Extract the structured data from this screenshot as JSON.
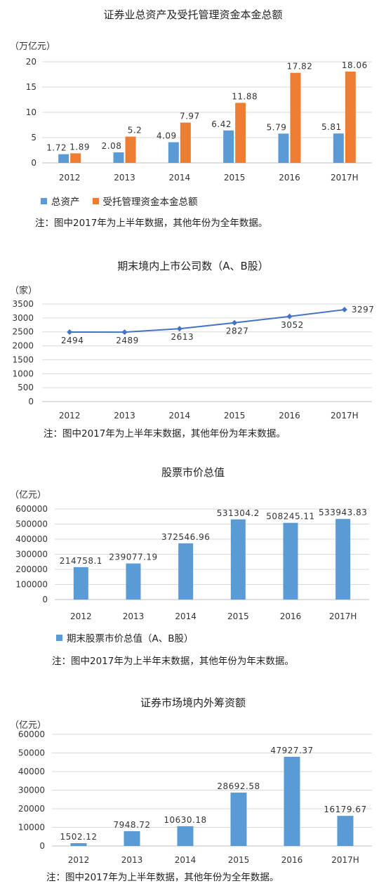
{
  "colors": {
    "blue": "#5b9bd5",
    "orange": "#ed7d31",
    "grid": "#d9d9d9",
    "line": "#4472c4"
  },
  "chart_data": [
    {
      "type": "bar",
      "title": "证券业总资产及受托管理资金本金总额",
      "unit": "（万亿元）",
      "categories": [
        "2012",
        "2013",
        "2014",
        "2015",
        "2016",
        "2017H"
      ],
      "ylim": [
        0,
        20
      ],
      "yticks": [
        0,
        5,
        10,
        15,
        20
      ],
      "series": [
        {
          "name": "总资产",
          "values": [
            1.72,
            2.08,
            4.09,
            6.42,
            5.79,
            5.81
          ],
          "labels": [
            "1.72",
            "2.08",
            "4.09",
            "6.42",
            "5.79",
            "5.81"
          ]
        },
        {
          "name": "受托管理资金本金总额",
          "values": [
            1.89,
            5.2,
            7.97,
            11.88,
            17.82,
            18.06
          ],
          "labels": [
            "1.89",
            "5.2",
            "7.97",
            "11.88",
            "17.82",
            "18.06"
          ]
        }
      ],
      "note": "注：图中2017年为上半年数据，其他年份为全年数据。",
      "grid": true,
      "legend": "bottom"
    },
    {
      "type": "line",
      "title": "期末境内上市公司数（A、B股）",
      "unit": "（家）",
      "categories": [
        "2012",
        "2013",
        "2014",
        "2015",
        "2016",
        "2017H"
      ],
      "ylim": [
        0,
        3500
      ],
      "yticks": [
        0,
        500,
        1000,
        1500,
        2000,
        2500,
        3000,
        3500
      ],
      "series": [
        {
          "values": [
            2494,
            2489,
            2613,
            2827,
            3052,
            3297
          ],
          "labels": [
            "2494",
            "2489",
            "2613",
            "2827",
            "3052",
            "3297"
          ]
        }
      ],
      "note": "注：图中2017年为上半年末数据，其他年份为年末数据。",
      "grid": true
    },
    {
      "type": "bar",
      "title": "股票市价总值",
      "unit": "（亿元）",
      "categories": [
        "2012",
        "2013",
        "2014",
        "2015",
        "2016",
        "2017H"
      ],
      "ylim": [
        0,
        600000
      ],
      "yticks": [
        0,
        100000,
        200000,
        300000,
        400000,
        500000,
        600000
      ],
      "series": [
        {
          "name": "期末股票市价总值（A、B股）",
          "values": [
            214758.1,
            239077.19,
            372546.96,
            531304.2,
            508245.11,
            533943.83
          ],
          "labels": [
            "214758.1",
            "239077.19",
            "372546.96",
            "531304.2",
            "508245.11",
            "533943.83"
          ]
        }
      ],
      "note": "注：图中2017年为上半年末数据，其他年份为年末数据。",
      "grid": true,
      "legend": "bottom"
    },
    {
      "type": "bar",
      "title": "证券市场境内外筹资额",
      "unit": "（亿元）",
      "categories": [
        "2012",
        "2013",
        "2014",
        "2015",
        "2016",
        "2017H"
      ],
      "ylim": [
        0,
        60000
      ],
      "yticks": [
        0,
        10000,
        20000,
        30000,
        40000,
        50000,
        60000
      ],
      "series": [
        {
          "values": [
            1502.12,
            7948.72,
            10630.18,
            28692.58,
            47927.37,
            16179.67
          ],
          "labels": [
            "1502.12",
            "7948.72",
            "10630.18",
            "28692.58",
            "47927.37",
            "16179.67"
          ]
        }
      ],
      "note": "注：图中2017年为上半年数据，其他年份为全年数据。",
      "grid": true
    }
  ]
}
